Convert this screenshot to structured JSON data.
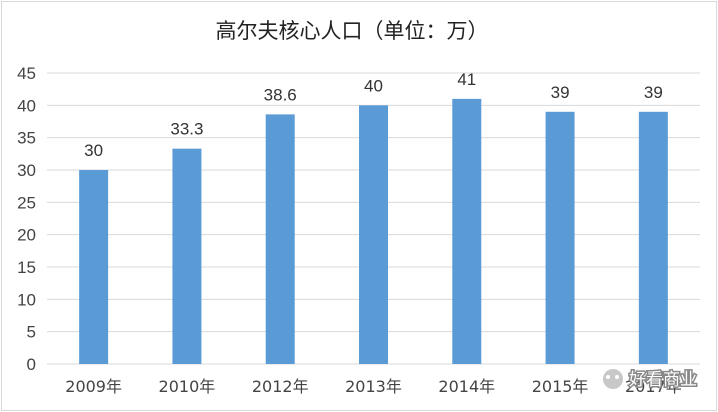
{
  "chart_data": {
    "type": "bar",
    "title": "高尔夫核心人口（单位：万）",
    "categories": [
      "2009年",
      "2010年",
      "2012年",
      "2013年",
      "2014年",
      "2015年",
      "2017年"
    ],
    "values": [
      30,
      33.3,
      38.6,
      40,
      41,
      39,
      39
    ],
    "data_labels": [
      "30",
      "33.3",
      "38.6",
      "40",
      "41",
      "39",
      "39"
    ],
    "yticks": [
      "0",
      "5",
      "10",
      "15",
      "20",
      "25",
      "30",
      "35",
      "40",
      "45"
    ],
    "ylim": [
      0,
      45
    ],
    "grid": true,
    "legend": "none",
    "bar_color": "#5b9bd5",
    "grid_color": "#d9d9d9"
  },
  "watermark": {
    "icon": "wechat-icon",
    "text": "好看商业"
  }
}
